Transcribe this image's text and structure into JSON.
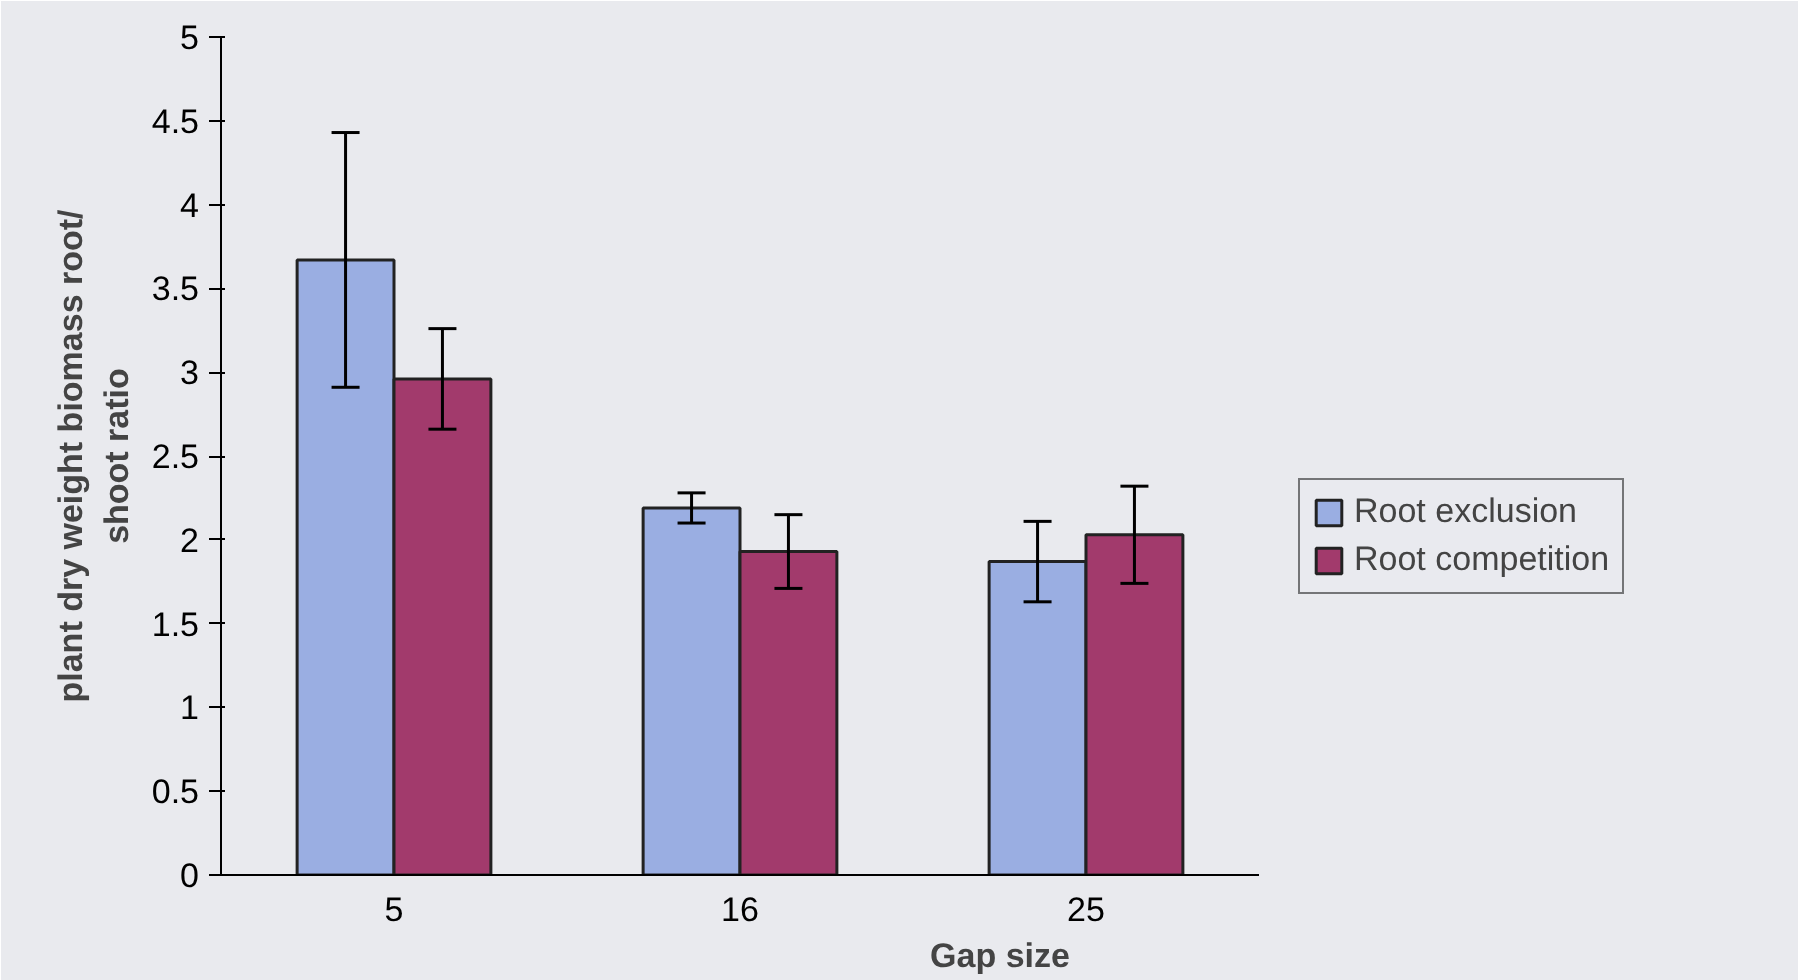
{
  "chart_data": {
    "type": "bar",
    "xlabel": "Gap size",
    "ylabel": "plant dry weight biomass root/\nshoot ratio",
    "categories": [
      "5",
      "16",
      "25"
    ],
    "series": [
      {
        "name": "Root exclusion",
        "color": "#9aaee2",
        "values": [
          3.67,
          2.19,
          1.87
        ],
        "errors": [
          0.76,
          0.09,
          0.24
        ]
      },
      {
        "name": "Root competition",
        "color": "#a23a6c",
        "values": [
          2.96,
          1.93,
          2.03
        ],
        "errors": [
          0.3,
          0.22,
          0.29
        ]
      }
    ],
    "ylim": [
      0,
      5
    ],
    "yticks": [
      0,
      {
        "value": 0.5,
        "label": "0.5"
      },
      1,
      {
        "value": 1.5,
        "label": "1.5"
      },
      2,
      {
        "value": 2.5,
        "label": "2.5"
      },
      3,
      {
        "value": 3.5,
        "label": "3.5"
      },
      4,
      {
        "value": 4.5,
        "label": "4.5"
      },
      5
    ],
    "grid": false,
    "legend": "right"
  }
}
